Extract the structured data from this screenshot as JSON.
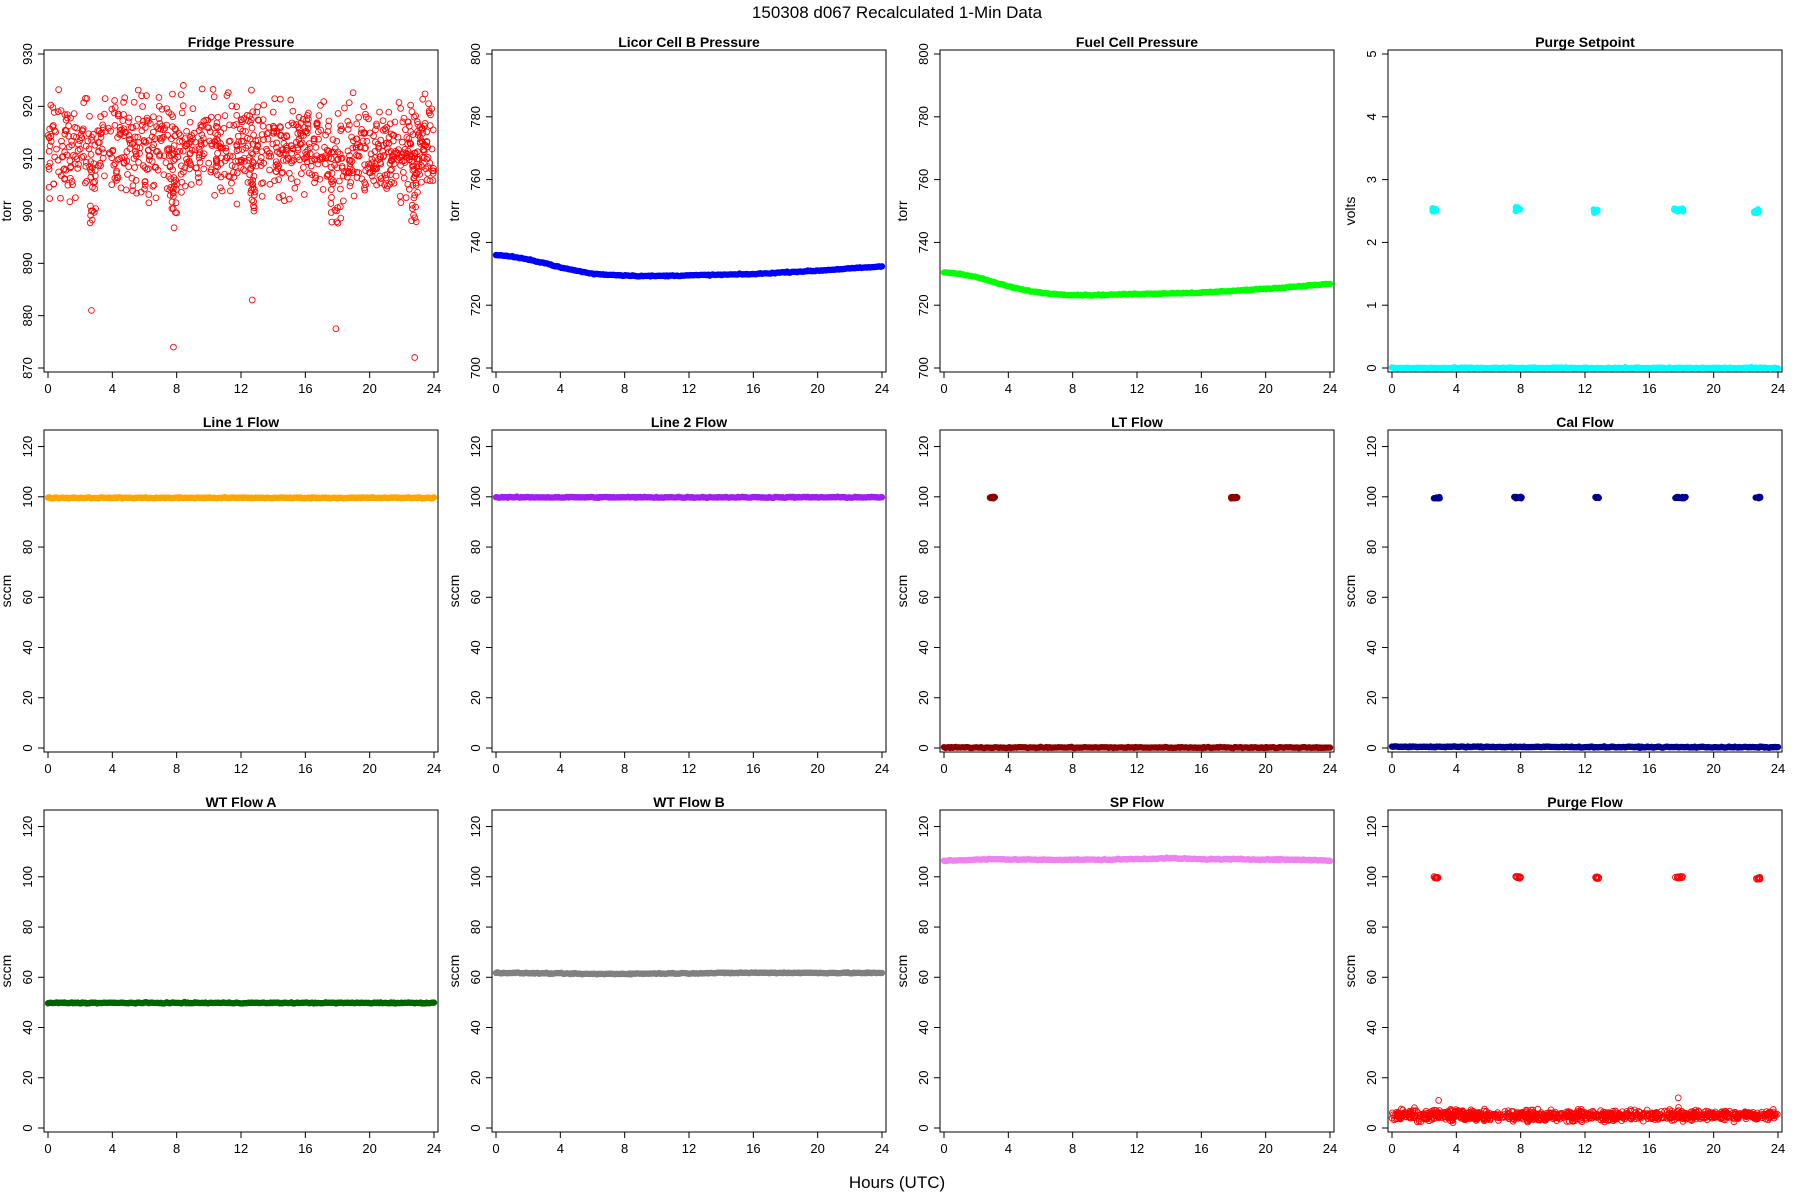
{
  "figure": {
    "title": "150308    d067   Recalculated 1-Min Data",
    "xlabel": "Hours (UTC)"
  },
  "chart_data": [
    {
      "type": "scatter",
      "title": "Fridge Pressure",
      "ylabel": "torr",
      "xlim": [
        0,
        24
      ],
      "ylim": [
        870,
        930
      ],
      "xticks": [
        0,
        4,
        8,
        12,
        16,
        20,
        24
      ],
      "yticks": [
        870,
        880,
        890,
        900,
        910,
        920,
        930
      ],
      "color": "#ff0000",
      "marker": "open-circle",
      "series": [
        {
          "kind": "noise",
          "segments": [
            [
              0,
              24,
              912
            ]
          ],
          "spread": 6.5,
          "dips": [
            [
              2.7,
              881
            ],
            [
              7.8,
              874
            ],
            [
              12.7,
              883
            ],
            [
              17.9,
              877.5
            ],
            [
              22.8,
              872
            ]
          ],
          "clusters": [
            [
              2.6,
              3.0,
              9
            ],
            [
              7.7,
              8.0,
              10
            ],
            [
              12.6,
              12.9,
              8
            ],
            [
              17.6,
              18.3,
              9
            ],
            [
              22.6,
              23.0,
              9
            ]
          ]
        }
      ]
    },
    {
      "type": "scatter",
      "title": "Licor Cell B Pressure",
      "ylabel": "torr",
      "xlim": [
        0,
        24
      ],
      "ylim": [
        700,
        800
      ],
      "xticks": [
        0,
        4,
        8,
        12,
        16,
        20,
        24
      ],
      "yticks": [
        700,
        720,
        740,
        760,
        780,
        800
      ],
      "color": "#0000ff",
      "marker": "filled-circle",
      "series": [
        {
          "kind": "line",
          "x": [
            0,
            1,
            2,
            3,
            4,
            5,
            6,
            7,
            8,
            9,
            10,
            12,
            14,
            16,
            18,
            20,
            22,
            24
          ],
          "y": [
            736,
            735.5,
            734.5,
            733.5,
            732,
            731,
            730,
            729.7,
            729.5,
            729.3,
            729.3,
            729.5,
            729.7,
            729.9,
            730.5,
            731,
            731.7,
            732.3
          ]
        }
      ]
    },
    {
      "type": "scatter",
      "title": "Fuel Cell Pressure",
      "ylabel": "torr",
      "xlim": [
        0,
        24
      ],
      "ylim": [
        700,
        800
      ],
      "xticks": [
        0,
        4,
        8,
        12,
        16,
        20,
        24
      ],
      "yticks": [
        700,
        720,
        740,
        760,
        780,
        800
      ],
      "color": "#00ff00",
      "marker": "filled-circle",
      "series": [
        {
          "kind": "line",
          "x": [
            0,
            1,
            2,
            3,
            4,
            5,
            6,
            7,
            8,
            9,
            10,
            12,
            14,
            16,
            18,
            20,
            22,
            24
          ],
          "y": [
            730.5,
            730,
            729,
            727.5,
            726,
            724.8,
            724,
            723.5,
            723.3,
            723.2,
            723.3,
            723.6,
            723.8,
            724,
            724.6,
            725.2,
            726,
            726.8
          ]
        }
      ]
    },
    {
      "type": "scatter",
      "title": "Purge Setpoint",
      "ylabel": "volts",
      "xlim": [
        0,
        24
      ],
      "ylim": [
        0,
        5
      ],
      "xticks": [
        0,
        4,
        8,
        12,
        16,
        20,
        24
      ],
      "yticks": [
        0,
        1,
        2,
        3,
        4,
        5
      ],
      "color": "#00ffff",
      "marker": "filled-circle",
      "series": [
        {
          "kind": "line",
          "x": [
            0,
            24
          ],
          "y": [
            0,
            0
          ]
        },
        {
          "kind": "clusters",
          "spread": 0.03,
          "clusters": [
            [
              2.5,
              2.8,
              2.52
            ],
            [
              7.6,
              8.0,
              2.53
            ],
            [
              12.5,
              12.8,
              2.5
            ],
            [
              17.5,
              18.1,
              2.52
            ],
            [
              22.5,
              22.8,
              2.5
            ]
          ]
        }
      ]
    },
    {
      "type": "scatter",
      "title": "Line 1 Flow",
      "ylabel": "sccm",
      "xlim": [
        0,
        24
      ],
      "ylim": [
        0,
        125
      ],
      "xticks": [
        0,
        4,
        8,
        12,
        16,
        20,
        24
      ],
      "yticks": [
        0,
        20,
        40,
        60,
        80,
        100,
        120
      ],
      "color": "#ffa500",
      "marker": "filled-circle",
      "series": [
        {
          "kind": "line",
          "x": [
            0,
            24
          ],
          "y": [
            99.6,
            99.6
          ]
        }
      ]
    },
    {
      "type": "scatter",
      "title": "Line 2 Flow",
      "ylabel": "sccm",
      "xlim": [
        0,
        24
      ],
      "ylim": [
        0,
        125
      ],
      "xticks": [
        0,
        4,
        8,
        12,
        16,
        20,
        24
      ],
      "yticks": [
        0,
        20,
        40,
        60,
        80,
        100,
        120
      ],
      "color": "#a020f0",
      "marker": "filled-circle",
      "series": [
        {
          "kind": "line",
          "x": [
            0,
            24
          ],
          "y": [
            99.8,
            99.8
          ]
        }
      ]
    },
    {
      "type": "scatter",
      "title": "LT Flow",
      "ylabel": "sccm",
      "xlim": [
        0,
        24
      ],
      "ylim": [
        0,
        125
      ],
      "xticks": [
        0,
        4,
        8,
        12,
        16,
        20,
        24
      ],
      "yticks": [
        0,
        20,
        40,
        60,
        80,
        100,
        120
      ],
      "color": "#8b0000",
      "marker": "filled-circle",
      "series": [
        {
          "kind": "line",
          "x": [
            0,
            24
          ],
          "y": [
            0.2,
            0.2
          ]
        },
        {
          "kind": "clusters",
          "spread": 0.3,
          "clusters": [
            [
              2.8,
              3.2,
              99.7
            ],
            [
              17.8,
              18.3,
              99.7
            ]
          ]
        }
      ]
    },
    {
      "type": "scatter",
      "title": "Cal Flow",
      "ylabel": "sccm",
      "xlim": [
        0,
        24
      ],
      "ylim": [
        0,
        125
      ],
      "xticks": [
        0,
        4,
        8,
        12,
        16,
        20,
        24
      ],
      "yticks": [
        0,
        20,
        40,
        60,
        80,
        100,
        120
      ],
      "color": "#00008b",
      "marker": "filled-circle",
      "series": [
        {
          "kind": "line",
          "x": [
            0,
            24
          ],
          "y": [
            0.5,
            0.3
          ]
        },
        {
          "kind": "clusters",
          "spread": 0.3,
          "clusters": [
            [
              2.6,
              3.0,
              99.7
            ],
            [
              7.6,
              8.1,
              99.7
            ],
            [
              12.6,
              12.9,
              99.7
            ],
            [
              17.6,
              18.3,
              99.7
            ],
            [
              22.6,
              22.9,
              99.7
            ]
          ]
        }
      ]
    },
    {
      "type": "scatter",
      "title": "WT Flow A",
      "ylabel": "sccm",
      "xlim": [
        0,
        24
      ],
      "ylim": [
        0,
        125
      ],
      "xticks": [
        0,
        4,
        8,
        12,
        16,
        20,
        24
      ],
      "yticks": [
        0,
        20,
        40,
        60,
        80,
        100,
        120
      ],
      "color": "#006400",
      "marker": "filled-circle",
      "series": [
        {
          "kind": "line",
          "x": [
            0,
            24
          ],
          "y": [
            49.8,
            49.8
          ]
        }
      ]
    },
    {
      "type": "scatter",
      "title": "WT Flow B",
      "ylabel": "sccm",
      "xlim": [
        0,
        24
      ],
      "ylim": [
        0,
        125
      ],
      "xticks": [
        0,
        4,
        8,
        12,
        16,
        20,
        24
      ],
      "yticks": [
        0,
        20,
        40,
        60,
        80,
        100,
        120
      ],
      "color": "#808080",
      "marker": "filled-circle",
      "series": [
        {
          "kind": "line",
          "x": [
            0,
            4,
            6,
            10,
            16,
            24
          ],
          "y": [
            61.8,
            61.5,
            61.3,
            61.5,
            61.8,
            61.7
          ]
        }
      ]
    },
    {
      "type": "scatter",
      "title": "SP Flow",
      "ylabel": "sccm",
      "xlim": [
        0,
        24
      ],
      "ylim": [
        0,
        125
      ],
      "xticks": [
        0,
        4,
        8,
        12,
        16,
        20,
        24
      ],
      "yticks": [
        0,
        20,
        40,
        60,
        80,
        100,
        120
      ],
      "color": "#ee82ee",
      "marker": "filled-circle",
      "series": [
        {
          "kind": "line",
          "x": [
            0,
            3,
            6,
            10,
            14,
            16,
            18,
            22,
            24
          ],
          "y": [
            106.4,
            107,
            106.8,
            106.8,
            107.4,
            107,
            107,
            106.8,
            106.5
          ]
        }
      ]
    },
    {
      "type": "scatter",
      "title": "Purge Flow",
      "ylabel": "sccm",
      "xlim": [
        0,
        24
      ],
      "ylim": [
        0,
        125
      ],
      "xticks": [
        0,
        4,
        8,
        12,
        16,
        20,
        24
      ],
      "yticks": [
        0,
        20,
        40,
        60,
        80,
        100,
        120
      ],
      "color": "#ff0000",
      "marker": "open-circle",
      "series": [
        {
          "kind": "noise",
          "segments": [
            [
              0,
              24,
              5
            ]
          ],
          "spread": 1.5,
          "dips": [
            [
              2.9,
              11
            ],
            [
              17.8,
              12
            ]
          ],
          "clusters": []
        },
        {
          "kind": "clusters",
          "spread": 0.4,
          "clusters": [
            [
              2.6,
              2.9,
              99.8
            ],
            [
              7.6,
              8.0,
              99.8
            ],
            [
              12.6,
              12.9,
              99.6
            ],
            [
              17.6,
              18.1,
              99.8
            ],
            [
              22.6,
              22.9,
              99.4
            ]
          ]
        }
      ]
    }
  ]
}
